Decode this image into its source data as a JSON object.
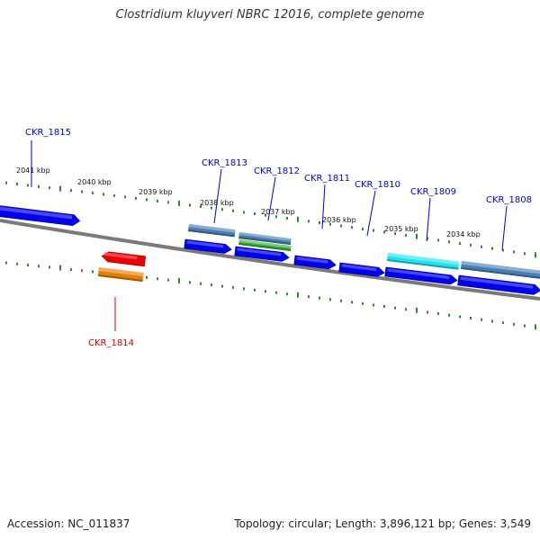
{
  "title": "Clostridium kluyveri NBRC 12016, complete genome",
  "accession": "Accession: NC_011837",
  "summary": "Topology: circular; Length: 3,896,121 bp; Genes: 3,549",
  "colors": {
    "backbone": "#7a7a7a",
    "tick": "#2e8b2e",
    "forward_label": "#0000cc",
    "reverse_label": "#cc0000"
  },
  "scale": {
    "labels": [
      "2041 kbp",
      "2040 kbp",
      "2039 kbp",
      "2038 kbp",
      "2037 kbp",
      "2036 kbp",
      "2035 kbp",
      "2034 kbp"
    ]
  },
  "genes": [
    {
      "label": "CKR_1815",
      "strand": "forward",
      "color": "#0000ee"
    },
    {
      "label": "CKR_1813",
      "strand": "forward",
      "color": "#0000ee"
    },
    {
      "label": "CKR_1812",
      "strand": "forward",
      "color": "#0000ee"
    },
    {
      "label": "CKR_1811",
      "strand": "forward",
      "color": "#0000ee"
    },
    {
      "label": "CKR_1810",
      "strand": "forward",
      "color": "#0000ee"
    },
    {
      "label": "CKR_1809",
      "strand": "forward",
      "color": "#0000ee"
    },
    {
      "label": "CKR_1808",
      "strand": "forward",
      "color": "#0000ee"
    },
    {
      "label": "CKR_1814",
      "strand": "reverse",
      "color": "#ee0000"
    }
  ],
  "features": [
    {
      "type": "cds",
      "color": "#4a7fb5"
    },
    {
      "type": "cds",
      "color": "#4a7fb5"
    },
    {
      "type": "cds",
      "color": "#3cb83c"
    },
    {
      "type": "cds",
      "color": "#1ee6f0"
    },
    {
      "type": "cds",
      "color": "#4a7fb5"
    },
    {
      "type": "cds",
      "color": "#e67e00"
    }
  ]
}
